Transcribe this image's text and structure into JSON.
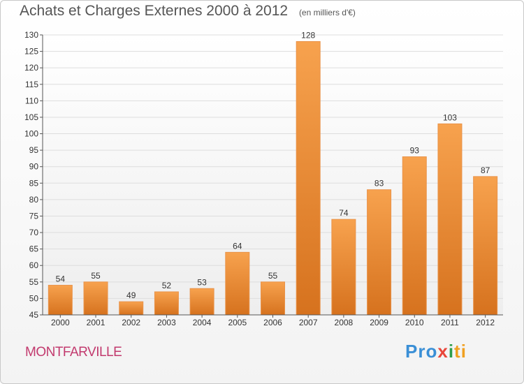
{
  "chart_data": {
    "type": "bar",
    "title": "Achats et Charges Externes 2000 à 2012",
    "subtitle": "(en milliers d'€)",
    "categories": [
      "2000",
      "2001",
      "2002",
      "2003",
      "2004",
      "2005",
      "2006",
      "2007",
      "2008",
      "2009",
      "2010",
      "2011",
      "2012"
    ],
    "values": [
      54,
      55,
      49,
      52,
      53,
      64,
      55,
      128,
      74,
      83,
      93,
      103,
      87
    ],
    "ylim": [
      45,
      130
    ],
    "yticks": [
      45,
      50,
      55,
      60,
      65,
      70,
      75,
      80,
      85,
      90,
      95,
      100,
      105,
      110,
      115,
      120,
      125,
      130
    ],
    "grid": true,
    "bar_color": "#f08a2c"
  },
  "footer": {
    "place": "MONTFARVILLE",
    "logo": "Proxiti"
  }
}
